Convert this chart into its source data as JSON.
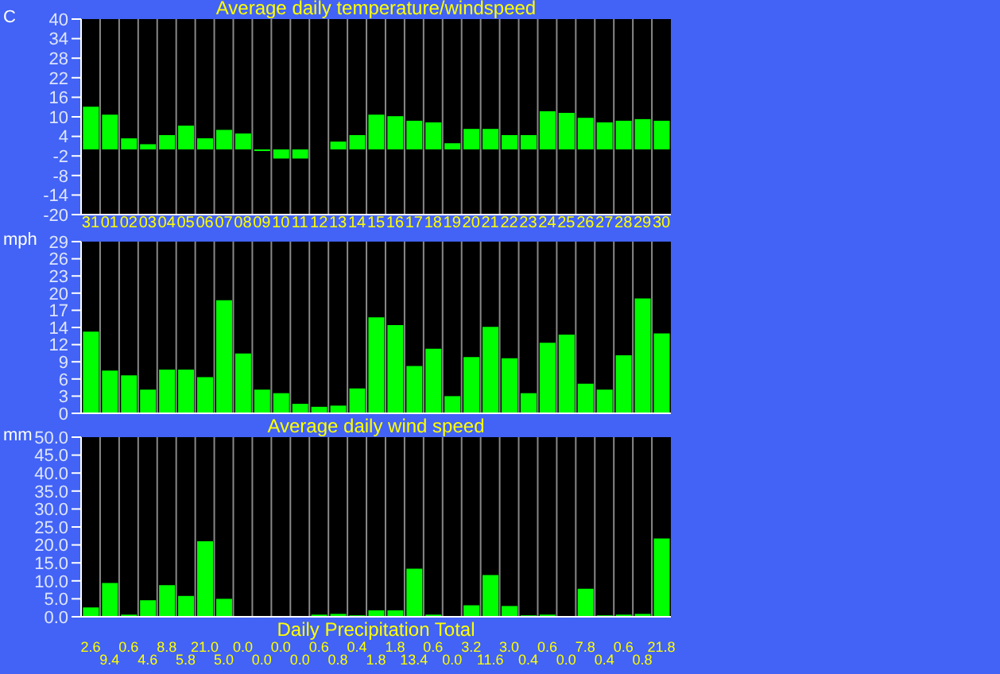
{
  "chart_data": [
    {
      "type": "bar",
      "title": "Average daily temperature/windspeed",
      "ylabel": "C",
      "categories": [
        "31",
        "01",
        "02",
        "03",
        "04",
        "05",
        "06",
        "07",
        "08",
        "09",
        "10",
        "11",
        "12",
        "13",
        "14",
        "15",
        "16",
        "17",
        "18",
        "19",
        "20",
        "21",
        "22",
        "23",
        "24",
        "25",
        "26",
        "27",
        "28",
        "29",
        "30"
      ],
      "values": [
        13.1,
        10.7,
        3.4,
        1.6,
        4.4,
        7.3,
        3.4,
        6.0,
        4.9,
        -0.5,
        -2.8,
        -2.8,
        0,
        2.4,
        4.4,
        10.7,
        10.2,
        8.8,
        8.3,
        1.9,
        6.3,
        6.3,
        4.4,
        4.4,
        11.7,
        11.2,
        9.7,
        8.3,
        8.8,
        9.3,
        8.8
      ],
      "color": "#00ff00",
      "ylim": [
        -20,
        40
      ],
      "yticks": [
        -20,
        -14,
        -8,
        -2,
        4,
        10,
        16,
        22,
        28,
        34,
        40
      ],
      "grid": "x"
    },
    {
      "type": "bar",
      "title": "Average daily wind speed",
      "ylabel": "mph",
      "categories": [
        null,
        null,
        null,
        null,
        null,
        null,
        null,
        null,
        null,
        null,
        null,
        null,
        null,
        null,
        null,
        null,
        null,
        null,
        null,
        null,
        null,
        null,
        null,
        null,
        null,
        null,
        null,
        null,
        null,
        null,
        null
      ],
      "values": [
        13.8,
        7.2,
        6.4,
        4.0,
        7.4,
        7.4,
        6.1,
        19.1,
        10.1,
        4.0,
        3.4,
        1.6,
        1.1,
        1.3,
        4.2,
        16.2,
        14.9,
        8.0,
        10.9,
        2.9,
        9.5,
        14.6,
        9.3,
        3.4,
        11.9,
        13.3,
        5.0,
        4.0,
        9.8,
        19.4,
        13.5
      ],
      "color": "#00ff00",
      "ylim": [
        0,
        29
      ],
      "yticks": [
        0,
        {
          "value": 2.9,
          "label": "3"
        },
        {
          "value": 5.8,
          "label": "6"
        },
        {
          "value": 8.7,
          "label": "9"
        },
        {
          "value": 11.6,
          "label": "12"
        },
        {
          "value": 14.5,
          "label": "14"
        },
        {
          "value": 17.4,
          "label": "17"
        },
        {
          "value": 20.3,
          "label": "20"
        },
        {
          "value": 23.2,
          "label": "23"
        },
        {
          "value": 26.1,
          "label": "26"
        },
        29
      ],
      "grid": "x",
      "tick_labels": "y"
    },
    {
      "type": "bar",
      "title": "Daily Precipitation Total",
      "ylabel": "mm",
      "categories": [
        null,
        null,
        null,
        null,
        null,
        null,
        null,
        null,
        null,
        null,
        null,
        null,
        null,
        null,
        null,
        null,
        null,
        null,
        null,
        null,
        null,
        null,
        null,
        null,
        null,
        null,
        null,
        null,
        null,
        null,
        null
      ],
      "values": [
        2.6,
        9.4,
        0.6,
        4.6,
        8.8,
        5.8,
        21.0,
        5.0,
        0,
        0,
        0,
        0,
        0.6,
        0.8,
        0.4,
        1.8,
        1.8,
        13.4,
        0.6,
        0,
        3.2,
        11.6,
        3.0,
        0.4,
        0.6,
        0,
        7.8,
        0.4,
        0.6,
        0.8,
        21.8
      ],
      "value_labels": [
        "2.6",
        "9.4",
        "0.6",
        "4.6",
        "8.8",
        "5.8",
        "21.0",
        "5.0",
        "0.0",
        "0.0",
        "0.0",
        "0.0",
        "0.6",
        "0.8",
        "0.4",
        "1.8",
        "1.8",
        "13.4",
        "0.6",
        "0.0",
        "3.2",
        "11.6",
        "3.0",
        "0.4",
        "0.6",
        "0.0",
        "7.8",
        "0.4",
        "0.6",
        "0.8",
        "21.8"
      ],
      "color": "#00ff00",
      "ylim": [
        0,
        50
      ],
      "yticks": [
        {
          "value": 0,
          "label": "0.0"
        },
        {
          "value": 5,
          "label": "5.0"
        },
        {
          "value": 10,
          "label": "10.0"
        },
        {
          "value": 15,
          "label": "15.0"
        },
        {
          "value": 20,
          "label": "20.0"
        },
        {
          "value": 25,
          "label": "25.0"
        },
        {
          "value": 30,
          "label": "30.0"
        },
        {
          "value": 35,
          "label": "35.0"
        },
        {
          "value": 40,
          "label": "40.0"
        },
        {
          "value": 45,
          "label": "45.0"
        },
        {
          "value": 50,
          "label": "50.0"
        }
      ],
      "grid": "x",
      "tick_labels": "y"
    }
  ]
}
